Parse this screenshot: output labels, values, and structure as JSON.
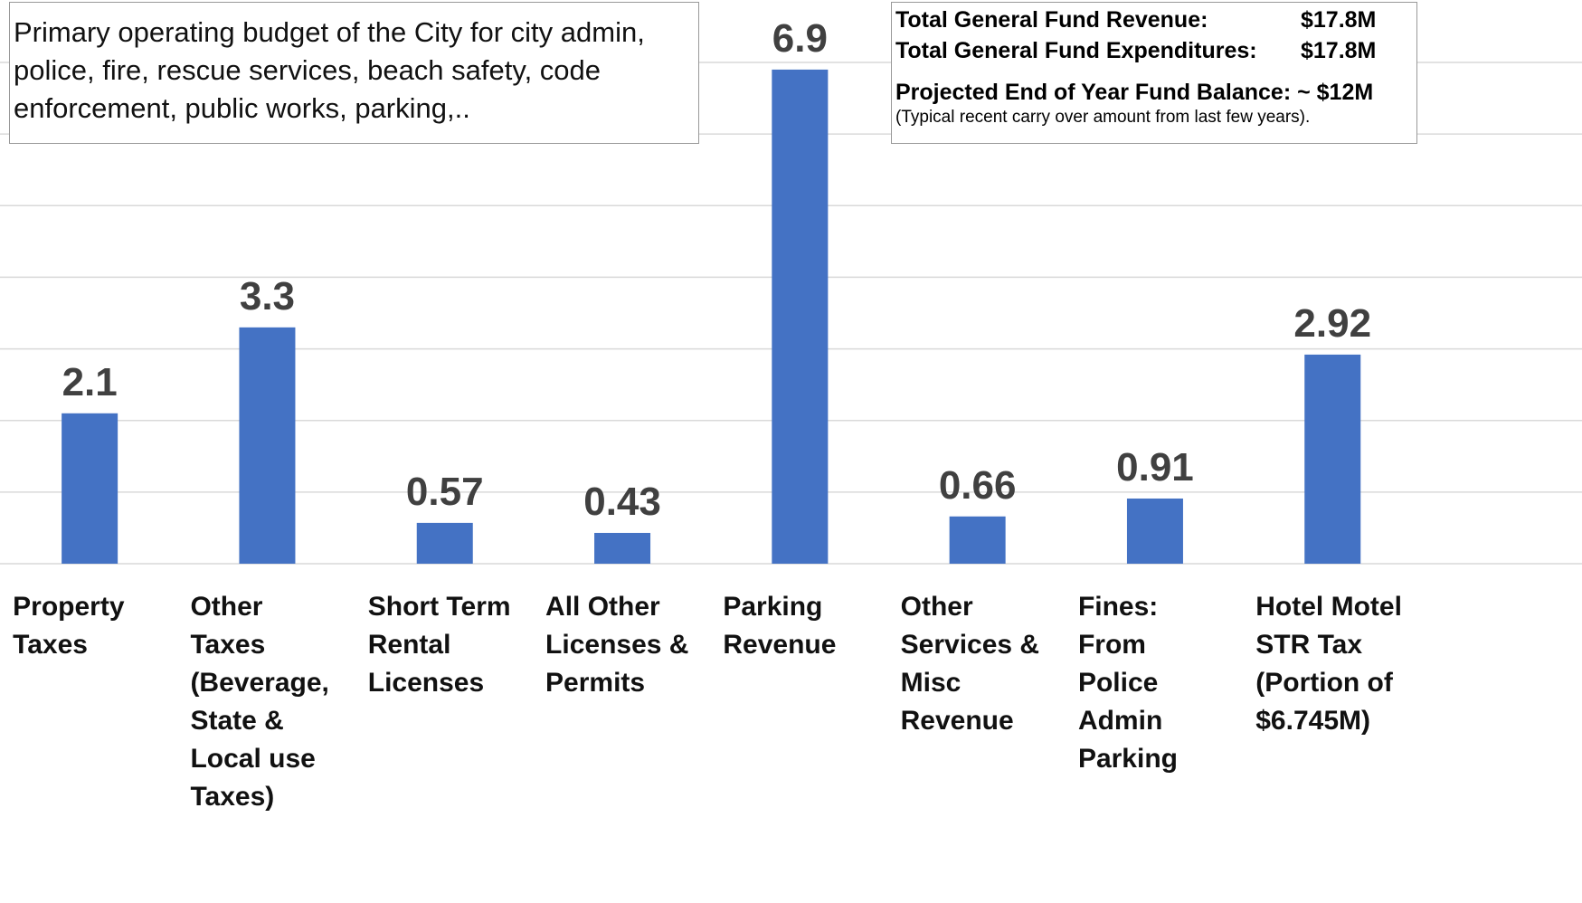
{
  "chart_data": {
    "type": "bar",
    "categories": [
      "Property Taxes",
      "Other Taxes (Beverage, State & Local use Taxes)",
      "Short Term Rental Licenses",
      "All Other Licenses & Permits",
      "Parking Revenue",
      "Other Services & Misc Revenue",
      "Fines: From Police Admin Parking",
      "Hotel Motel STR Tax (Portion of $6.745M)"
    ],
    "values": [
      2.1,
      3.3,
      0.57,
      0.43,
      6.9,
      0.66,
      0.91,
      2.92
    ],
    "color": "#4472c4",
    "ylim": [
      0,
      7
    ],
    "yticks": [
      0,
      1,
      2,
      3,
      4,
      5,
      6,
      7
    ],
    "grid": true,
    "annotations": {
      "description": "Primary operating budget of the City for city admin, police, fire, rescue services, beach safety, code enforcement, public works, parking,..",
      "summary": [
        {
          "label": "Total General Fund Revenue:",
          "value": "$17.8M"
        },
        {
          "label": "Total General Fund Expenditures:",
          "value": "$17.8M"
        }
      ],
      "balance": "Projected End of Year Fund Balance: ~ $12M",
      "note": "(Typical recent carry over amount from last few years)."
    }
  }
}
